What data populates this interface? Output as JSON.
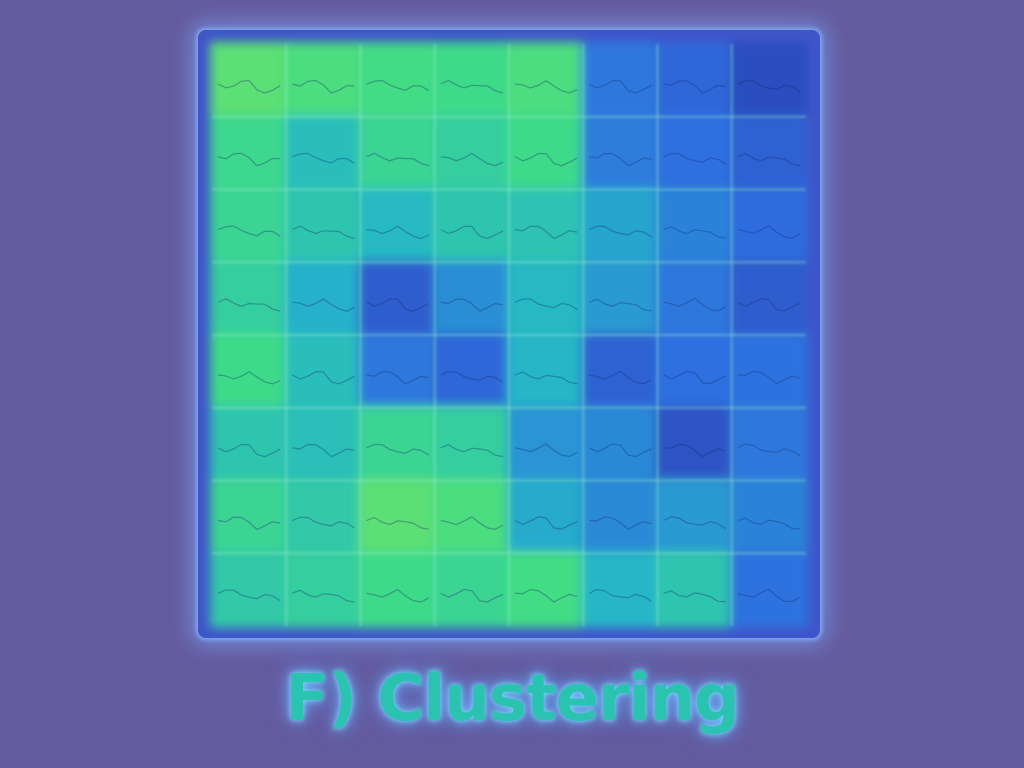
{
  "figure": {
    "caption": "F) Clustering",
    "grid": {
      "rows": 8,
      "cols": 8
    },
    "colors": {
      "background": "#655b9f",
      "frame": "#3f55c9",
      "colormap": [
        "#2a2fa0",
        "#2f6fe0",
        "#25b6c8",
        "#3fdc86",
        "#a6e84a"
      ]
    },
    "cells": [
      [
        0.82,
        0.78,
        0.76,
        0.74,
        0.78,
        0.28,
        0.22,
        0.12
      ],
      [
        0.72,
        0.55,
        0.7,
        0.66,
        0.74,
        0.3,
        0.25,
        0.2
      ],
      [
        0.7,
        0.6,
        0.52,
        0.6,
        0.58,
        0.44,
        0.32,
        0.24
      ],
      [
        0.66,
        0.48,
        0.18,
        0.36,
        0.52,
        0.4,
        0.28,
        0.18
      ],
      [
        0.74,
        0.55,
        0.28,
        0.22,
        0.5,
        0.2,
        0.25,
        0.26
      ],
      [
        0.6,
        0.56,
        0.7,
        0.66,
        0.38,
        0.34,
        0.14,
        0.28
      ],
      [
        0.7,
        0.62,
        0.82,
        0.78,
        0.46,
        0.34,
        0.4,
        0.32
      ],
      [
        0.62,
        0.66,
        0.74,
        0.7,
        0.76,
        0.5,
        0.6,
        0.26
      ]
    ]
  }
}
